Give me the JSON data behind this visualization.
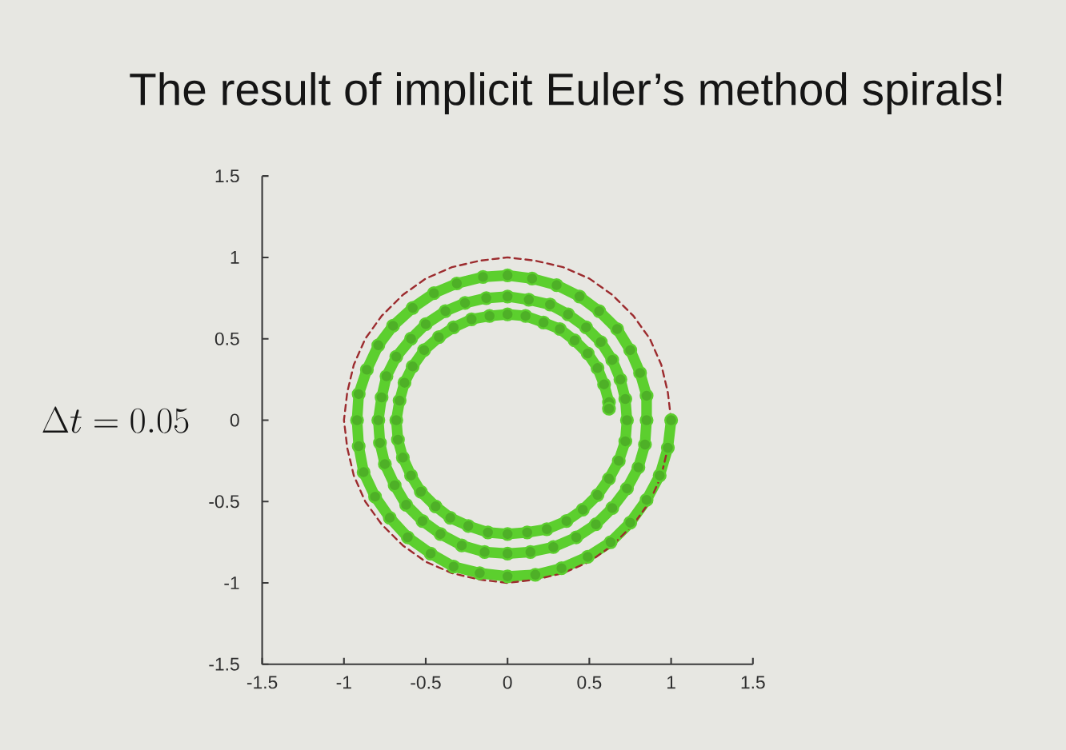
{
  "chart_data": {
    "type": "line",
    "title": "The result of implicit Euler’s method spirals!",
    "annotations": [
      "\\Delta t = 0.05"
    ],
    "xlim": [
      -1.5,
      1.5
    ],
    "ylim": [
      -1.5,
      1.5
    ],
    "xticks": [
      -1.5,
      -1,
      -0.5,
      0,
      0.5,
      1,
      1.5
    ],
    "yticks": [
      -1.5,
      -1,
      -0.5,
      0,
      0.5,
      1,
      1.5
    ],
    "series": [
      {
        "color": "#5ccf2e",
        "marker": "circle",
        "line_style": "solid",
        "x": [
          1,
          0.98,
          0.93,
          0.85,
          0.75,
          0.63,
          0.49,
          0.33,
          0.17,
          0,
          -0.17,
          -0.33,
          -0.47,
          -0.61,
          -0.72,
          -0.81,
          -0.88,
          -0.91,
          -0.92,
          -0.91,
          -0.86,
          -0.79,
          -0.7,
          -0.58,
          -0.45,
          -0.31,
          -0.15,
          0,
          0.15,
          0.3,
          0.44,
          0.56,
          0.67,
          0.75,
          0.81,
          0.85,
          0.85,
          0.84,
          0.8,
          0.73,
          0.64,
          0.54,
          0.42,
          0.28,
          0.14,
          0,
          -0.14,
          -0.28,
          -0.41,
          -0.52,
          -0.62,
          -0.69,
          -0.75,
          -0.78,
          -0.79,
          -0.77,
          -0.74,
          -0.68,
          -0.59,
          -0.5,
          -0.38,
          -0.26,
          -0.13,
          0,
          0.13,
          0.26,
          0.37,
          0.48,
          0.57,
          0.64,
          0.69,
          0.72,
          0.73,
          0.72,
          0.68,
          0.62,
          0.55,
          0.46,
          0.36,
          0.24,
          0.12,
          0,
          -0.12,
          -0.24,
          -0.35,
          -0.44,
          -0.53,
          -0.59,
          -0.64,
          -0.67,
          -0.68,
          -0.66,
          -0.63,
          -0.58,
          -0.51,
          -0.42,
          -0.33,
          -0.22,
          -0.11,
          0,
          0.11,
          0.22,
          0.32,
          0.41,
          0.49,
          0.55,
          0.59,
          0.62,
          0.62
        ],
        "values": [
          0,
          -0.17,
          -0.34,
          -0.49,
          -0.63,
          -0.75,
          -0.84,
          -0.91,
          -0.95,
          -0.96,
          -0.94,
          -0.9,
          -0.82,
          -0.72,
          -0.6,
          -0.47,
          -0.32,
          -0.16,
          0,
          0.16,
          0.31,
          0.46,
          0.58,
          0.69,
          0.78,
          0.84,
          0.88,
          0.89,
          0.87,
          0.83,
          0.76,
          0.67,
          0.56,
          0.43,
          0.29,
          0.15,
          0,
          -0.15,
          -0.29,
          -0.42,
          -0.54,
          -0.64,
          -0.72,
          -0.78,
          -0.81,
          -0.82,
          -0.81,
          -0.77,
          -0.7,
          -0.62,
          -0.52,
          -0.4,
          -0.27,
          -0.14,
          0,
          0.14,
          0.27,
          0.39,
          0.5,
          0.59,
          0.67,
          0.72,
          0.75,
          0.76,
          0.74,
          0.71,
          0.65,
          0.57,
          0.48,
          0.37,
          0.25,
          0.13,
          0,
          -0.13,
          -0.25,
          -0.36,
          -0.46,
          -0.55,
          -0.62,
          -0.67,
          -0.69,
          -0.7,
          -0.69,
          -0.65,
          -0.6,
          -0.53,
          -0.44,
          -0.34,
          -0.23,
          -0.12,
          0,
          0.12,
          0.23,
          0.33,
          0.43,
          0.51,
          0.57,
          0.62,
          0.64,
          0.65,
          0.64,
          0.6,
          0.56,
          0.49,
          0.41,
          0.32,
          0.22,
          0.11,
          0.07
        ]
      },
      {
        "color": "#9c2b2e",
        "marker": "none",
        "line_style": "dashed",
        "x": [
          1,
          0.98,
          0.94,
          0.87,
          0.77,
          0.64,
          0.5,
          0.34,
          0.17,
          0,
          -0.17,
          -0.34,
          -0.5,
          -0.64,
          -0.77,
          -0.87,
          -0.94,
          -0.98,
          -1,
          -0.98,
          -0.94,
          -0.87,
          -0.77,
          -0.64,
          -0.5,
          -0.34,
          -0.17,
          0,
          0.17,
          0.34,
          0.5,
          0.64,
          0.77,
          0.87,
          0.94,
          0.98
        ],
        "values": [
          0,
          0.17,
          0.34,
          0.5,
          0.64,
          0.77,
          0.87,
          0.94,
          0.98,
          1,
          0.98,
          0.94,
          0.87,
          0.77,
          0.64,
          0.5,
          0.34,
          0.17,
          0,
          -0.17,
          -0.34,
          -0.5,
          -0.64,
          -0.77,
          -0.87,
          -0.94,
          -0.98,
          -1,
          -0.98,
          -0.94,
          -0.87,
          -0.77,
          -0.64,
          -0.5,
          -0.34,
          -0.17
        ]
      }
    ]
  }
}
